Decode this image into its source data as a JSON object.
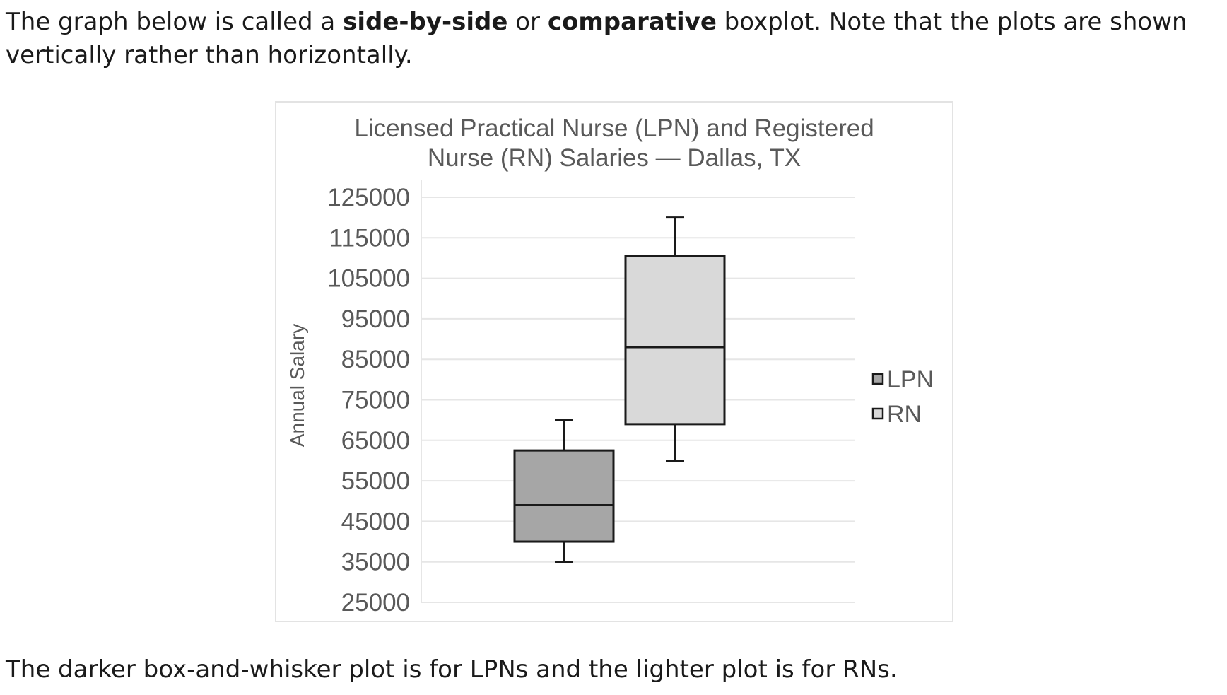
{
  "intro": {
    "part1": "The graph below is called a ",
    "bold1": "side-by-side",
    "part2": " or ",
    "bold2": "comparative",
    "part3": " boxplot. Note that the plots are shown vertically rather than horizontally."
  },
  "caption": "The darker box-and-whisker plot is for LPNs and the lighter plot is for RNs.",
  "colors": {
    "lpn_fill": "#a6a6a6",
    "rn_fill": "#d9d9d9",
    "grid": "#e6e6e6",
    "box_stroke": "#1a1a1a",
    "text": "#595959"
  },
  "chart_data": {
    "type": "boxplot",
    "title_lines": [
      "Licensed Practical Nurse (LPN) and Registered",
      "Nurse (RN) Salaries — Dallas, TX"
    ],
    "ylabel": "Annual Salary",
    "xlabel": "",
    "ylim": [
      25000,
      125000
    ],
    "y_ticks": [
      "125000",
      "115000",
      "105000",
      "95000",
      "85000",
      "75000",
      "65000",
      "55000",
      "45000",
      "35000",
      "25000"
    ],
    "grid": true,
    "legend_position": "right",
    "series": [
      {
        "name": "LPN",
        "min": 35000,
        "q1": 40000,
        "median": 49000,
        "q3": 62500,
        "max": 70000
      },
      {
        "name": "RN",
        "min": 60000,
        "q1": 69000,
        "median": 88000,
        "q3": 110500,
        "max": 120000
      }
    ]
  }
}
